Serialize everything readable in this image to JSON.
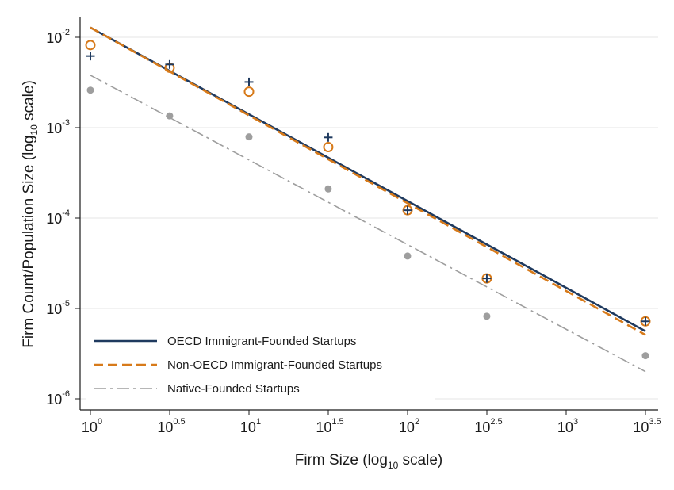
{
  "chart_data": {
    "type": "scatter",
    "xlabel": "Firm Size (log10 scale)",
    "ylabel": "Firm Count/Population Size (log10 scale)",
    "x_scale": "log10",
    "y_scale": "log10",
    "xlim_log10": [
      0,
      3.5
    ],
    "ylim_log10": [
      -6,
      -2
    ],
    "x_tick_labels": [
      {
        "base": "10",
        "exp": "0"
      },
      {
        "base": "10",
        "exp": "0.5"
      },
      {
        "base": "10",
        "exp": "1"
      },
      {
        "base": "10",
        "exp": "1.5"
      },
      {
        "base": "10",
        "exp": "2"
      },
      {
        "base": "10",
        "exp": "2.5"
      },
      {
        "base": "10",
        "exp": "3"
      },
      {
        "base": "10",
        "exp": "3.5"
      }
    ],
    "y_tick_labels": [
      {
        "base": "10",
        "exp": "-2"
      },
      {
        "base": "10",
        "exp": "-3"
      },
      {
        "base": "10",
        "exp": "-4"
      },
      {
        "base": "10",
        "exp": "-5"
      },
      {
        "base": "10",
        "exp": "-6"
      }
    ],
    "grid": "horizontal",
    "legend_position": "bottom-left",
    "series": [
      {
        "name": "OECD Immigrant-Founded Startups",
        "marker": "plus",
        "color": "#1f3a5f",
        "points": [
          {
            "x": 1,
            "y": 0.0062
          },
          {
            "x": 3.16,
            "y": 0.005
          },
          {
            "x": 10,
            "y": 0.0032
          },
          {
            "x": 31.6,
            "y": 0.00078
          },
          {
            "x": 100,
            "y": 0.000122
          },
          {
            "x": 316,
            "y": 2.15e-05
          },
          {
            "x": 3162,
            "y": 7.2e-06
          }
        ],
        "fit": {
          "style": "solid",
          "x": [
            1,
            3162
          ],
          "y": [
            0.0128,
            5.6e-06
          ]
        }
      },
      {
        "name": "Non-OECD Immigrant-Founded Startups",
        "marker": "circle",
        "color": "#d77a1a",
        "points": [
          {
            "x": 1,
            "y": 0.0082
          },
          {
            "x": 3.16,
            "y": 0.0046
          },
          {
            "x": 10,
            "y": 0.0025
          },
          {
            "x": 31.6,
            "y": 0.00061
          },
          {
            "x": 100,
            "y": 0.000122
          },
          {
            "x": 316,
            "y": 2.15e-05
          },
          {
            "x": 3162,
            "y": 7.2e-06
          }
        ],
        "fit": {
          "style": "dashed",
          "x": [
            1,
            3162
          ],
          "y": [
            0.0128,
            5.1e-06
          ]
        }
      },
      {
        "name": "Native-Founded Startups",
        "marker": "dot",
        "color": "#9e9e9e",
        "points": [
          {
            "x": 1,
            "y": 0.0026
          },
          {
            "x": 3.16,
            "y": 0.00135
          },
          {
            "x": 10,
            "y": 0.00079
          },
          {
            "x": 31.6,
            "y": 0.00021
          },
          {
            "x": 100,
            "y": 3.8e-05
          },
          {
            "x": 316,
            "y": 8.2e-06
          },
          {
            "x": 3162,
            "y": 3e-06
          }
        ],
        "fit": {
          "style": "dashdot",
          "x": [
            1,
            3162
          ],
          "y": [
            0.0038,
            2e-06
          ]
        }
      }
    ]
  }
}
